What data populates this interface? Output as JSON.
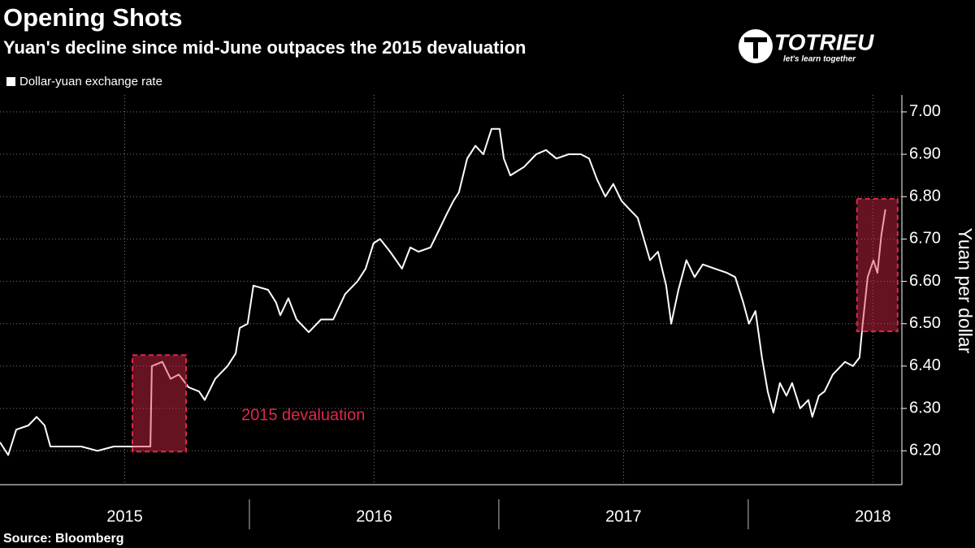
{
  "chart_data": {
    "type": "line",
    "title": "Opening Shots",
    "subtitle": "Yuan's decline since mid-June outpaces the 2015 devaluation",
    "logo": {
      "name": "TOTRIEU",
      "tagline": "let's learn together"
    },
    "y_axis_label": "Yuan per dollar",
    "source": "Source: Bloomberg",
    "xlim": [
      2015,
      2018.616
    ],
    "ylim": [
      6.12,
      7.04
    ],
    "yticks": [
      {
        "value": 6.2,
        "label": "6.20"
      },
      {
        "value": 6.3,
        "label": "6.30"
      },
      {
        "value": 6.4,
        "label": "6.40"
      },
      {
        "value": 6.5,
        "label": "6.50"
      },
      {
        "value": 6.6,
        "label": "6.60"
      },
      {
        "value": 6.7,
        "label": "6.70"
      },
      {
        "value": 6.8,
        "label": "6.80"
      },
      {
        "value": 6.9,
        "label": "6.90"
      },
      {
        "value": 7,
        "label": "7.00"
      }
    ],
    "xticks": [
      {
        "value": 2015.5,
        "label": "2015"
      },
      {
        "value": 2016.5,
        "label": "2016"
      },
      {
        "value": 2017.5,
        "label": "2017"
      },
      {
        "value": 2018.5,
        "label": "2018"
      }
    ],
    "year_boundaries": [
      2016,
      2017,
      2018
    ],
    "grid": true,
    "legend": "top-left",
    "highlights": [
      {
        "label": "2015 devaluation",
        "x": [
          2015.531,
          2015.746
        ],
        "y": [
          6.198,
          6.426
        ],
        "color": "#e0284a"
      },
      {
        "x": [
          2018.436,
          2018.599
        ],
        "y": [
          6.482,
          6.795
        ],
        "color": "#e0284a"
      }
    ],
    "series": [
      {
        "name": "Dollar-yuan exchange rate",
        "color": "#ffffff",
        "x": [
          2015.0,
          2015.033,
          2015.065,
          2015.114,
          2015.147,
          2015.179,
          2015.202,
          2015.261,
          2015.326,
          2015.391,
          2015.456,
          2015.521,
          2015.603,
          2015.609,
          2015.651,
          2015.684,
          2015.717,
          2015.756,
          2015.798,
          2015.821,
          2015.863,
          2015.912,
          2015.945,
          2015.961,
          2015.993,
          2016.016,
          2016.075,
          2016.107,
          2016.124,
          2016.156,
          2016.189,
          2016.238,
          2016.287,
          2016.336,
          2016.384,
          2016.433,
          2016.466,
          2016.498,
          2016.524,
          2016.564,
          2016.612,
          2016.645,
          2016.678,
          2016.726,
          2016.759,
          2016.792,
          2016.818,
          2016.84,
          2016.873,
          2016.906,
          2016.938,
          2016.971,
          2017.003,
          2017.02,
          2017.046,
          2017.101,
          2017.15,
          2017.189,
          2017.231,
          2017.28,
          2017.329,
          2017.362,
          2017.394,
          2017.427,
          2017.459,
          2017.492,
          2017.524,
          2017.557,
          2017.606,
          2017.638,
          2017.671,
          2017.691,
          2017.72,
          2017.752,
          2017.785,
          2017.818,
          2017.866,
          2017.915,
          2017.948,
          2017.98,
          2018.003,
          2018.029,
          2018.055,
          2018.078,
          2018.101,
          2018.127,
          2018.153,
          2018.176,
          2018.208,
          2018.241,
          2018.257,
          2018.283,
          2018.306,
          2018.339,
          2018.388,
          2018.42,
          2018.446,
          2018.459,
          2018.479,
          2018.502,
          2018.518,
          2018.534,
          2018.55
        ],
        "values": [
          6.22,
          6.19,
          6.25,
          6.26,
          6.28,
          6.26,
          6.21,
          6.21,
          6.21,
          6.2,
          6.21,
          6.21,
          6.21,
          6.4,
          6.41,
          6.37,
          6.38,
          6.35,
          6.34,
          6.32,
          6.37,
          6.4,
          6.43,
          6.49,
          6.5,
          6.59,
          6.58,
          6.55,
          6.52,
          6.56,
          6.51,
          6.48,
          6.51,
          6.51,
          6.57,
          6.6,
          6.63,
          6.69,
          6.7,
          6.67,
          6.63,
          6.68,
          6.67,
          6.68,
          6.72,
          6.76,
          6.79,
          6.81,
          6.89,
          6.92,
          6.9,
          6.96,
          6.96,
          6.89,
          6.85,
          6.87,
          6.9,
          6.91,
          6.89,
          6.9,
          6.9,
          6.89,
          6.84,
          6.8,
          6.83,
          6.79,
          6.77,
          6.75,
          6.65,
          6.67,
          6.59,
          6.5,
          6.58,
          6.65,
          6.61,
          6.64,
          6.63,
          6.62,
          6.61,
          6.55,
          6.5,
          6.53,
          6.42,
          6.34,
          6.29,
          6.36,
          6.33,
          6.36,
          6.3,
          6.32,
          6.28,
          6.33,
          6.34,
          6.38,
          6.41,
          6.4,
          6.42,
          6.5,
          6.61,
          6.65,
          6.62,
          6.71,
          6.77
        ]
      }
    ]
  }
}
